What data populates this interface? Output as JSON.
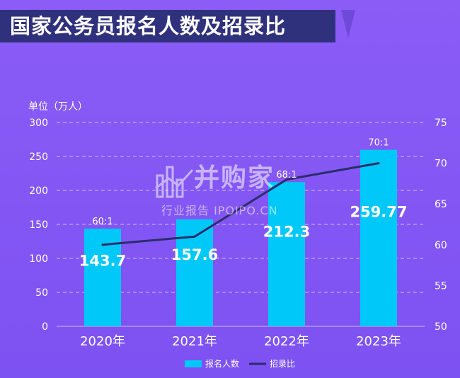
{
  "title": "国家公务员报名人数及招录比",
  "unit_label": "单位（万人）",
  "watermark": {
    "main": "并购家",
    "sub": "行业报告 IPOIPO.CN"
  },
  "colors": {
    "bar": "#00c8f8",
    "line": "#2a2d6b",
    "title_bg": "#30317d"
  },
  "chart_data": {
    "type": "bar",
    "categories": [
      "2020年",
      "2021年",
      "2022年",
      "2023年"
    ],
    "series": [
      {
        "name": "报名人数",
        "type": "bar",
        "axis": "left",
        "values": [
          143.7,
          157.6,
          212.3,
          259.77
        ],
        "labels": [
          "143.7",
          "157.6",
          "212.3",
          "259.77"
        ]
      },
      {
        "name": "招录比",
        "type": "line",
        "axis": "right",
        "values": [
          60,
          61,
          68,
          70
        ],
        "labels": [
          "60:1",
          "",
          "68:1",
          "70:1"
        ]
      }
    ],
    "y_left": {
      "ylim": [
        0,
        300
      ],
      "ticks": [
        "0",
        "50",
        "100",
        "150",
        "200",
        "250",
        "300"
      ]
    },
    "y_right": {
      "ylim": [
        50,
        75
      ],
      "ticks": [
        "50",
        "55",
        "60",
        "65",
        "70",
        "75"
      ]
    },
    "grid": true,
    "legend_position": "bottom"
  }
}
